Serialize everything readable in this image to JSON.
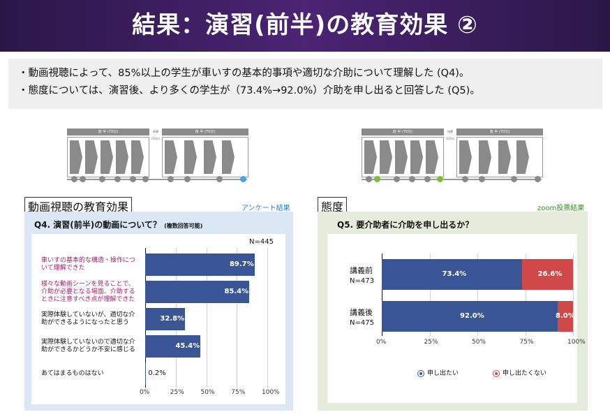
{
  "title": "結果：演習(前半)の教育効果 ②",
  "summary": [
    "・動画視聴によって、85%以上の学生が車いすの基本的事項や適切な介助について理解した (Q4)。",
    "・態度については、演習後、より多くの学生が（73.4%→92.0%）介助を申し出ると回答した (Q5)。"
  ],
  "flow": {
    "first_half": "前 半 (70分)",
    "break": "休憩(10分)",
    "second_half": "後 半 (70分)"
  },
  "left": {
    "section_label": "動画視聴の教育効果",
    "source": "アンケート結果",
    "source_color": "#2a7fd4",
    "question": "Q4. 演習(前半)の動画について？",
    "note": "(複数回答可能)",
    "n": "N=445",
    "chart_data": {
      "type": "bar",
      "orientation": "horizontal",
      "categories": [
        "車いすの基本的な構造・操作について理解できた",
        "様々な動画シーンを見ることで、介助が必要となる場面、介助するときに注意すべき点が理解できた",
        "実際体験していないが、適切な介助ができるようになったと思う",
        "実際体験していないので適切な介助ができるかどうか不安に感じる",
        "あてはまるものはない"
      ],
      "category_lines": [
        [
          "車いすの基本的な構造・操作につ",
          "いて理解できた"
        ],
        [
          "様々な動画シーンを見ることで、",
          "介助が必要となる場面、介助する",
          "ときに注意すべき点が理解できた"
        ],
        [
          "実際体験していないが、適切な介",
          "助ができるようになったと思う"
        ],
        [
          "実際体験していないので適切な介",
          "助ができるかどうか不安に感じる"
        ],
        [
          "あてはまるものはない"
        ]
      ],
      "category_colors": [
        "#a0206e",
        "#a0206e",
        "#111111",
        "#111111",
        "#111111"
      ],
      "values": [
        89.7,
        85.4,
        32.8,
        45.4,
        0.2
      ],
      "value_labels": [
        "89.7%",
        "85.4%",
        "32.8%",
        "45.4%",
        "0.2%"
      ],
      "xlim": [
        0,
        100
      ],
      "ticks": [
        "0%",
        "25%",
        "50%",
        "75%",
        "100%"
      ],
      "bar_color": "#3a5596",
      "panel_bg": "#dce7f5"
    }
  },
  "right": {
    "section_label": "態度",
    "source": "zoom投票結果",
    "source_color": "#3a8a2a",
    "question": "Q5. 要介助者に介助を申し出るか？",
    "chart_data": {
      "type": "bar",
      "orientation": "horizontal",
      "stacked": true,
      "categories": [
        "講義前",
        "講義後"
      ],
      "category_n": [
        "N=473",
        "N=475"
      ],
      "series": [
        {
          "name": "申し出たい",
          "values": [
            73.4,
            92.0
          ],
          "labels": [
            "73.4%",
            "92.0%"
          ],
          "color": "#3a5596"
        },
        {
          "name": "申し出たくない",
          "values": [
            26.6,
            8.0
          ],
          "labels": [
            "26.6%",
            "8.0%"
          ],
          "color": "#d04848"
        }
      ],
      "xlim": [
        0,
        100
      ],
      "ticks": [
        "0%",
        "25%",
        "50%",
        "75%",
        "100%"
      ],
      "legend_position": "bottom",
      "panel_bg": "#e6ecdc"
    }
  }
}
